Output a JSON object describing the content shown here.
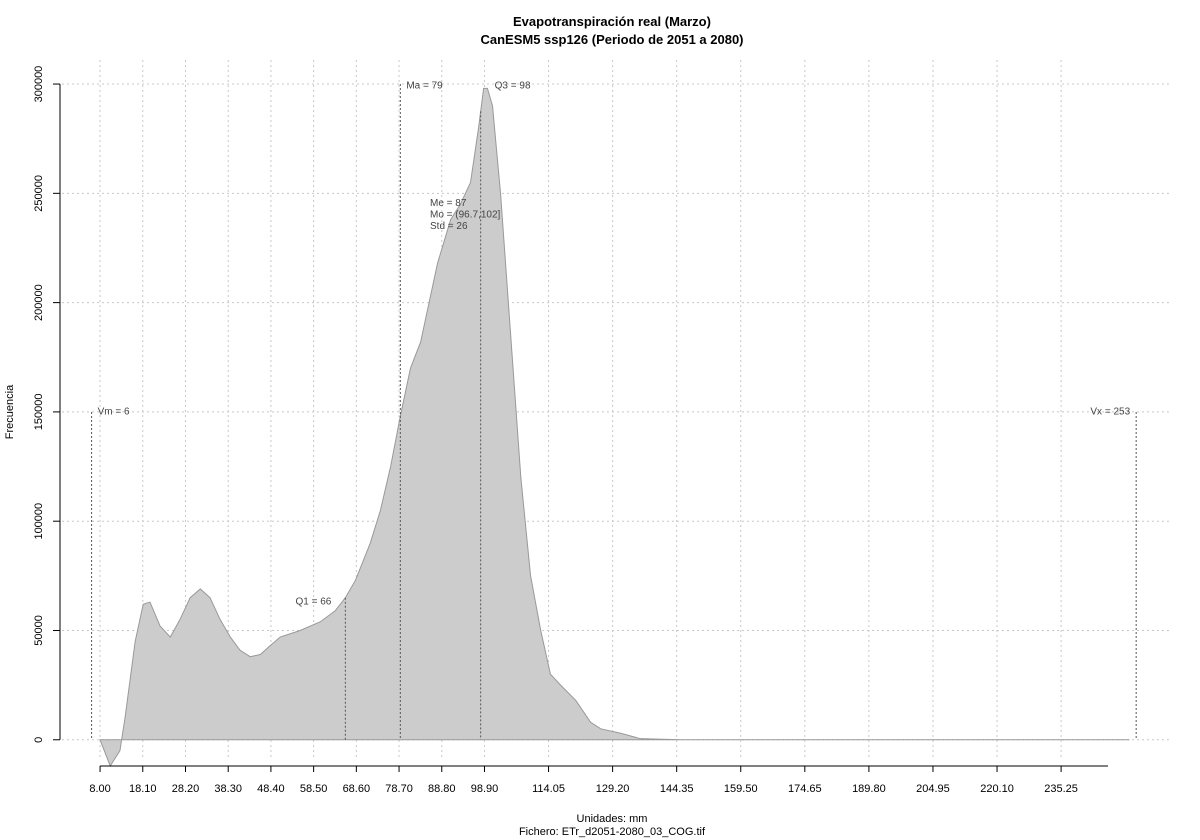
{
  "chart_data": {
    "type": "area",
    "title": "Evapotranspiración real (Marzo)",
    "subtitle": "CanESM5 ssp126 (Periodo de 2051 a 2080)",
    "xlabel": "Unidades: mm",
    "caption": "Fichero: ETr_d2051-2080_03_COG.tif",
    "ylabel": "Frecuencia",
    "xlim": [
      -1,
      261
    ],
    "ylim": [
      -12000,
      311000
    ],
    "xticks": [
      {
        "value": 8,
        "label": "8.00"
      },
      {
        "value": 18.1,
        "label": "18.10"
      },
      {
        "value": 28.2,
        "label": "28.20"
      },
      {
        "value": 38.3,
        "label": "38.30"
      },
      {
        "value": 48.4,
        "label": "48.40"
      },
      {
        "value": 58.5,
        "label": "58.50"
      },
      {
        "value": 68.6,
        "label": "68.60"
      },
      {
        "value": 78.7,
        "label": "78.70"
      },
      {
        "value": 88.8,
        "label": "88.80"
      },
      {
        "value": 98.9,
        "label": "98.90"
      },
      {
        "value": 114.05,
        "label": "114.05"
      },
      {
        "value": 129.2,
        "label": "129.20"
      },
      {
        "value": 144.35,
        "label": "144.35"
      },
      {
        "value": 159.5,
        "label": "159.50"
      },
      {
        "value": 174.65,
        "label": "174.65"
      },
      {
        "value": 189.8,
        "label": "189.80"
      },
      {
        "value": 204.95,
        "label": "204.95"
      },
      {
        "value": 220.1,
        "label": "220.10"
      },
      {
        "value": 235.25,
        "label": "235.25"
      }
    ],
    "yticks": [
      0,
      50000,
      100000,
      150000,
      200000,
      250000,
      300000
    ],
    "grid": true,
    "series": [
      {
        "color": "#cccccc",
        "x": [
          8.0,
          10.4,
          12.7,
          13.9,
          16.3,
          18.2,
          19.8,
          22.2,
          24.6,
          26.9,
          29.3,
          31.7,
          34.0,
          36.4,
          38.8,
          41.1,
          43.5,
          45.9,
          48.2,
          50.6,
          55.3,
          60.1,
          63.6,
          66.0,
          68.4,
          71.9,
          74.3,
          76.7,
          79.0,
          81.4,
          83.8,
          87.8,
          90.9,
          93.2,
          95.6,
          97.5,
          98.7,
          99.6,
          100.8,
          102.7,
          105.1,
          107.5,
          109.8,
          112.2,
          114.5,
          116.9,
          120.5,
          124.0,
          126.4,
          131.1,
          135.8,
          145.3,
          251.4
        ],
        "values": [
          0,
          -12000,
          -5000,
          10000,
          45000,
          62000,
          63000,
          52000,
          47000,
          55000,
          65000,
          69000,
          65000,
          55000,
          47000,
          41000,
          38000,
          39000,
          43000,
          47000,
          50000,
          54000,
          59000,
          65000,
          73000,
          90000,
          105000,
          125000,
          148000,
          170000,
          182000,
          218000,
          238000,
          245000,
          255000,
          280000,
          298000,
          298000,
          290000,
          250000,
          185000,
          120000,
          75000,
          50000,
          30000,
          25000,
          18000,
          8000,
          5000,
          3000,
          500,
          0,
          0
        ]
      }
    ],
    "vlines": [
      {
        "label": "Vm = 6",
        "x": 6
      },
      {
        "label": "Q1 = 66",
        "x": 66
      },
      {
        "label": "Ma = 79",
        "x": 79
      },
      {
        "label": "Q3 = 98",
        "x": 98
      },
      {
        "label": "Vx = 253",
        "x": 253
      }
    ],
    "stats": [
      "Me = 87",
      "Mo = (96.7,102]",
      "Std = 26"
    ]
  }
}
